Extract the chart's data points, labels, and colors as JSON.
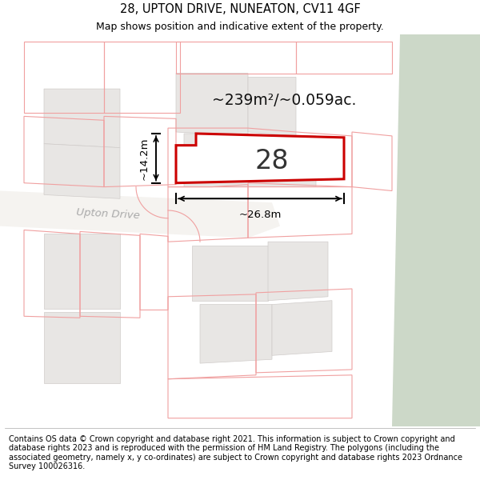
{
  "title": "28, UPTON DRIVE, NUNEATON, CV11 4GF",
  "subtitle": "Map shows position and indicative extent of the property.",
  "footer": "Contains OS data © Crown copyright and database right 2021. This information is subject to Crown copyright and database rights 2023 and is reproduced with the permission of HM Land Registry. The polygons (including the associated geometry, namely x, y co-ordinates) are subject to Crown copyright and database rights 2023 Ordnance Survey 100026316.",
  "area_text": "~239m²/~0.059ac.",
  "label_28": "28",
  "dim_width": "~26.8m",
  "dim_height": "~14.2m",
  "road_label": "Upton Drive",
  "title_fontsize": 10.5,
  "subtitle_fontsize": 9,
  "footer_fontsize": 7.0,
  "map_bg": "#ffffff",
  "plot_fill": "#e8e8e8",
  "plot_edge": "#c8c0b8",
  "pink_edge": "#f0a0a0",
  "green_fill": "#ccd8c8",
  "road_fill": "#f0eeec",
  "prop_edge": "#cc0000"
}
